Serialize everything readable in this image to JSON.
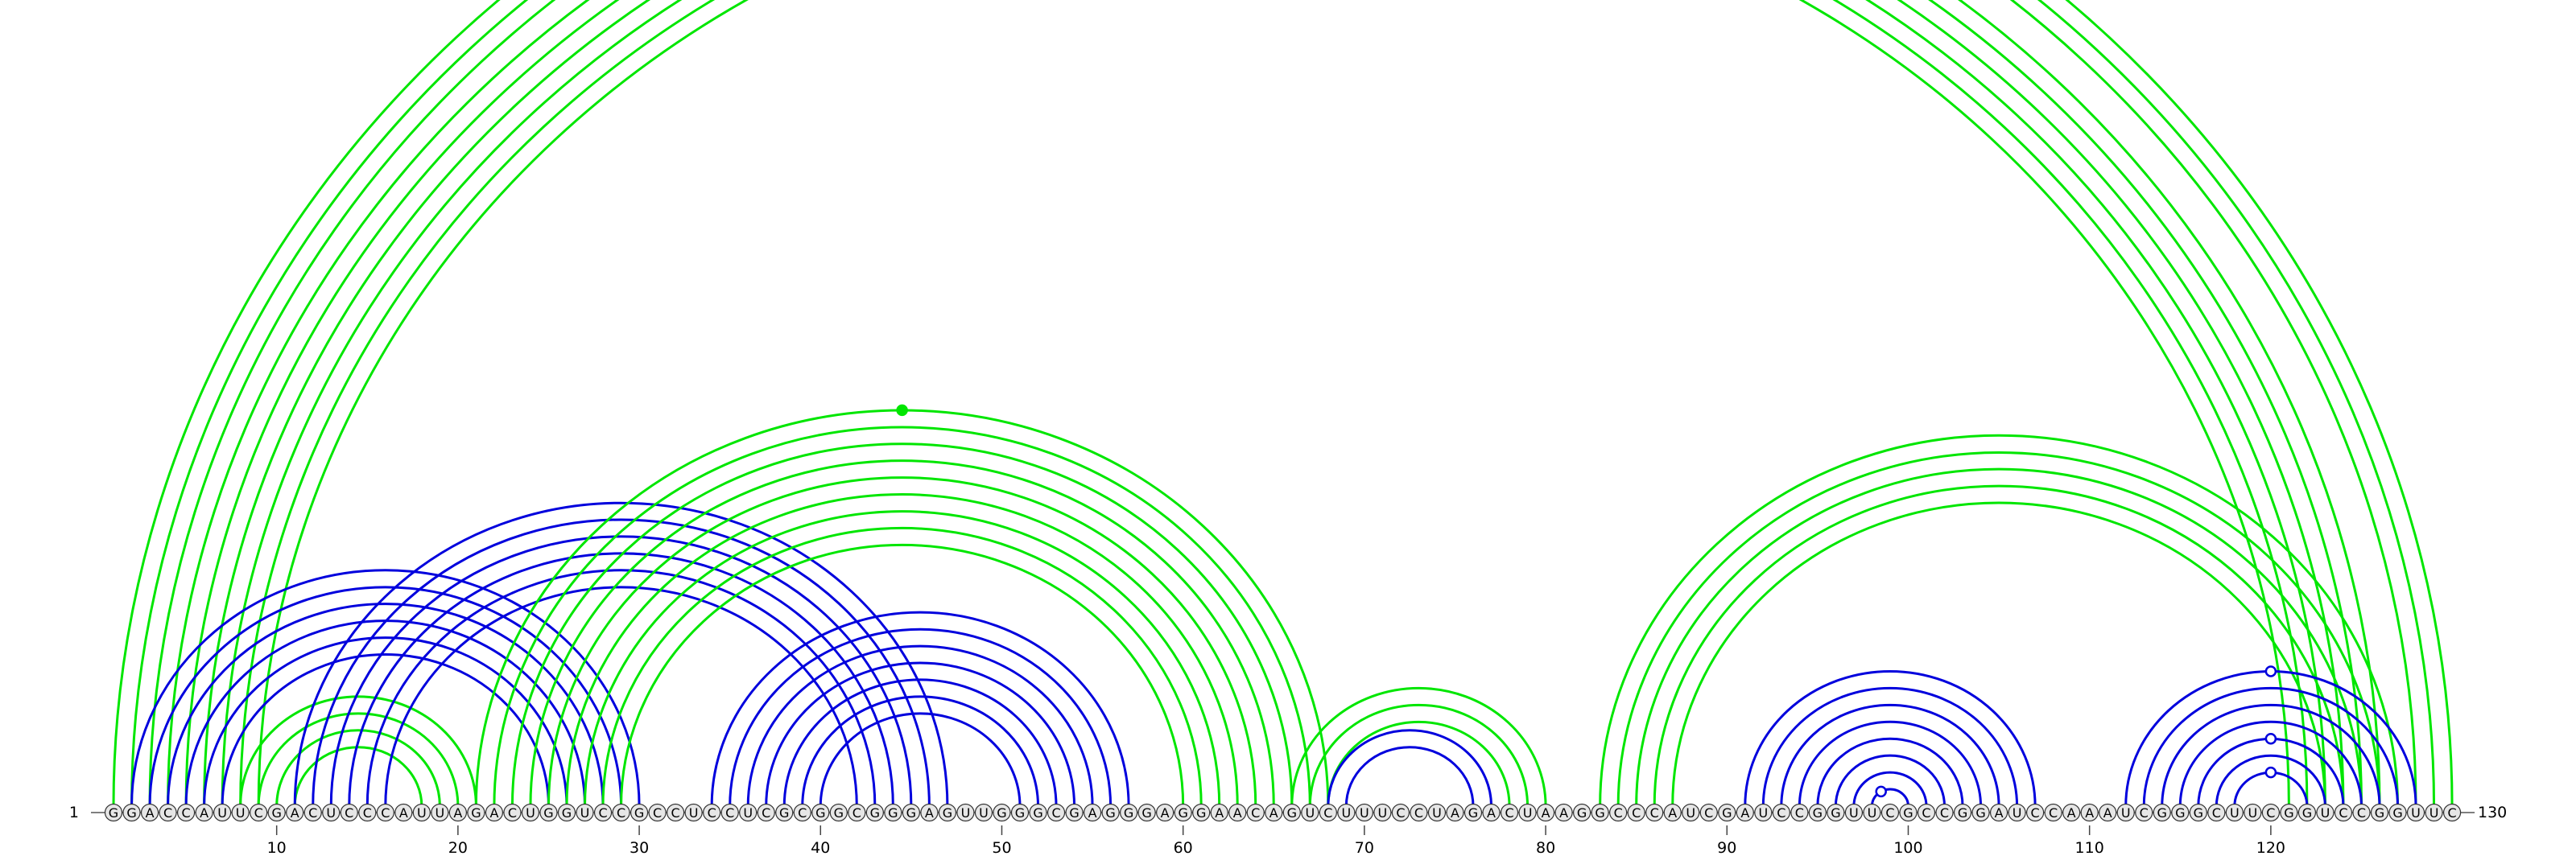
{
  "chart_data": {
    "type": "arc-diagram",
    "sequence": "GGACCAUUCGACUCCCAUUAGACUGGUCCGCCUCCUCGCGGCGGGAGUUGGGCGAGGGAGGAACAGUCUUUCCUAGACUAAGGCCCAUCGAUCCGGUUCGCCGGAUCCAAAUCGGGCUUCGGUCCGGUUC",
    "start_label": "1",
    "end_label": "130",
    "tick_labels": [
      "10",
      "20",
      "30",
      "40",
      "50",
      "60",
      "70",
      "80",
      "90",
      "100",
      "110",
      "120"
    ],
    "ticks": [
      10,
      20,
      30,
      40,
      50,
      60,
      70,
      80,
      90,
      100,
      110,
      120
    ],
    "colors": {
      "blue": "#0000dd",
      "green": "#00e600",
      "nucleotide_fill": "#e6e6e6"
    },
    "arcs": [
      {
        "color": "green",
        "pairs": [
          [
            1,
            130
          ],
          [
            2,
            129
          ],
          [
            3,
            128
          ],
          [
            4,
            126
          ],
          [
            5,
            125
          ],
          [
            6,
            124
          ],
          [
            7,
            123
          ],
          [
            8,
            122
          ],
          [
            9,
            121
          ],
          [
            66,
            66
          ]
        ]
      },
      {
        "color": "green",
        "pairs": [
          [
            8,
            21
          ],
          [
            9,
            20
          ],
          [
            10,
            19
          ],
          [
            11,
            18
          ]
        ]
      },
      {
        "color": "blue",
        "pairs": [
          [
            2,
            30
          ],
          [
            3,
            29
          ],
          [
            4,
            28
          ],
          [
            5,
            27
          ],
          [
            6,
            26
          ],
          [
            7,
            25
          ]
        ]
      },
      {
        "color": "blue",
        "pairs": [
          [
            11,
            47
          ],
          [
            12,
            46
          ],
          [
            13,
            45
          ],
          [
            14,
            44
          ],
          [
            15,
            43
          ],
          [
            16,
            42
          ]
        ]
      },
      {
        "color": "green",
        "pairs": [
          [
            21,
            68
          ],
          [
            22,
            67
          ],
          [
            23,
            66
          ],
          [
            24,
            65
          ],
          [
            25,
            64
          ],
          [
            26,
            63
          ],
          [
            27,
            62
          ],
          [
            28,
            61
          ],
          [
            29,
            60
          ]
        ]
      },
      {
        "color": "blue",
        "pairs": [
          [
            34,
            57
          ],
          [
            35,
            56
          ],
          [
            36,
            55
          ],
          [
            37,
            54
          ],
          [
            38,
            53
          ],
          [
            39,
            52
          ],
          [
            40,
            51
          ]
        ]
      },
      {
        "color": "green",
        "pairs": [
          [
            66,
            80
          ],
          [
            67,
            79
          ],
          [
            68,
            78
          ]
        ]
      },
      {
        "color": "blue",
        "pairs": [
          [
            68,
            77
          ],
          [
            69,
            76
          ]
        ]
      },
      {
        "color": "green",
        "pairs": [
          [
            83,
            127
          ],
          [
            84,
            126
          ],
          [
            85,
            125
          ],
          [
            86,
            124
          ],
          [
            87,
            123
          ]
        ]
      },
      {
        "color": "blue",
        "pairs": [
          [
            91,
            107
          ],
          [
            92,
            106
          ],
          [
            93,
            105
          ],
          [
            94,
            104
          ],
          [
            95,
            103
          ],
          [
            96,
            102
          ],
          [
            97,
            101
          ],
          [
            98,
            100
          ]
        ]
      },
      {
        "color": "blue",
        "pairs": [
          [
            112,
            128
          ],
          [
            113,
            127
          ],
          [
            114,
            126
          ],
          [
            115,
            125
          ],
          [
            116,
            124
          ],
          [
            117,
            123
          ],
          [
            118,
            122
          ]
        ]
      }
    ],
    "markers": [
      {
        "position": 66,
        "span": [
          1,
          130
        ],
        "color": "green",
        "filled": false
      },
      {
        "position": 44.5,
        "span": [
          21,
          68
        ],
        "color": "green",
        "filled": true
      },
      {
        "position": 98.5,
        "span": [
          98,
          100
        ],
        "color": "blue",
        "filled": false
      },
      {
        "position": 120,
        "span": [
          118,
          122
        ],
        "color": "blue",
        "filled": false
      },
      {
        "position": 120,
        "span": [
          116,
          124
        ],
        "color": "blue",
        "filled": false
      },
      {
        "position": 120,
        "span": [
          112,
          128
        ],
        "color": "blue",
        "filled": false
      }
    ]
  }
}
